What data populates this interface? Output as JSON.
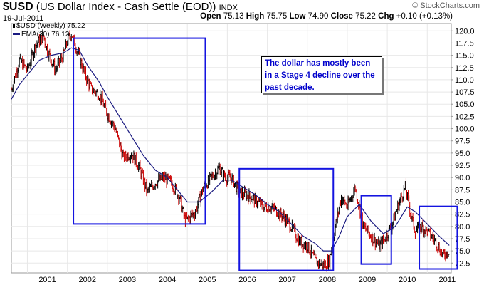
{
  "header": {
    "symbol": "$USD",
    "name": "(US Dollar Index - Cash Settle (EOD))",
    "exchange": "INDX",
    "date": "19-Jul-2011",
    "brand": "© StockCharts.com",
    "open_label": "Open",
    "open": "75.13",
    "high_label": "High",
    "high": "75.75",
    "low_label": "Low",
    "low": "74.90",
    "close_label": "Close",
    "close": "75.22",
    "chg_label": "Chg",
    "chg": "+0.10 (+0.13%)"
  },
  "legend": {
    "price": "$USD (Weekly) 75.22",
    "ema": "EMA(30) 76.12"
  },
  "annotation": {
    "text": "The dollar has mostly been in a Stage 4 decline over the past decade."
  },
  "colors": {
    "up": "#000000",
    "down": "#cc0000",
    "ema": "#1a1a80",
    "boxes": "#1414e0",
    "grid": "#e8e8e8",
    "annotation_text": "#0000cc"
  },
  "chart_data": {
    "type": "line",
    "title": "$USD (US Dollar Index - Cash Settle (EOD))",
    "x_axis": {
      "type": "time",
      "range": [
        2000.6,
        2011.6
      ],
      "tick_labels": [
        "2001",
        "2002",
        "2003",
        "2004",
        "2005",
        "2006",
        "2007",
        "2008",
        "2009",
        "2010",
        "2011"
      ]
    },
    "y_axis": {
      "position": "right",
      "range": [
        70.5,
        121.5
      ],
      "tick_labels": [
        "72.5",
        "75.0",
        "77.5",
        "80.0",
        "82.5",
        "85.0",
        "87.5",
        "90.0",
        "92.5",
        "95.0",
        "97.5",
        "100.0",
        "102.5",
        "105.0",
        "107.5",
        "110.0",
        "112.5",
        "115.0",
        "117.5",
        "120.0"
      ]
    },
    "grid": true,
    "series": [
      {
        "name": "$USD (Weekly)",
        "style": "hlc-bars",
        "points": [
          [
            2000.6,
            108
          ],
          [
            2000.8,
            114
          ],
          [
            2001.0,
            112
          ],
          [
            2001.2,
            117
          ],
          [
            2001.4,
            119
          ],
          [
            2001.5,
            116
          ],
          [
            2001.7,
            112
          ],
          [
            2001.9,
            115
          ],
          [
            2002.0,
            118
          ],
          [
            2002.1,
            119.5
          ],
          [
            2002.2,
            117
          ],
          [
            2002.4,
            112
          ],
          [
            2002.6,
            108
          ],
          [
            2002.8,
            107
          ],
          [
            2003.0,
            103
          ],
          [
            2003.2,
            100
          ],
          [
            2003.4,
            94
          ],
          [
            2003.6,
            95
          ],
          [
            2003.8,
            92
          ],
          [
            2004.0,
            87
          ],
          [
            2004.2,
            89
          ],
          [
            2004.4,
            90
          ],
          [
            2004.6,
            89
          ],
          [
            2004.8,
            86
          ],
          [
            2004.95,
            81
          ],
          [
            2005.2,
            83
          ],
          [
            2005.4,
            88
          ],
          [
            2005.6,
            90
          ],
          [
            2005.8,
            92
          ],
          [
            2005.95,
            90
          ],
          [
            2006.1,
            90
          ],
          [
            2006.3,
            87
          ],
          [
            2006.6,
            86
          ],
          [
            2006.9,
            84
          ],
          [
            2007.1,
            84
          ],
          [
            2007.4,
            82
          ],
          [
            2007.6,
            80
          ],
          [
            2007.8,
            77
          ],
          [
            2008.0,
            76
          ],
          [
            2008.2,
            73
          ],
          [
            2008.4,
            72
          ],
          [
            2008.55,
            73
          ],
          [
            2008.7,
            80
          ],
          [
            2008.85,
            86
          ],
          [
            2009.0,
            84
          ],
          [
            2009.2,
            88
          ],
          [
            2009.4,
            80
          ],
          [
            2009.6,
            78
          ],
          [
            2009.8,
            76
          ],
          [
            2009.9,
            77
          ],
          [
            2010.1,
            80
          ],
          [
            2010.3,
            85
          ],
          [
            2010.45,
            88
          ],
          [
            2010.6,
            82
          ],
          [
            2010.7,
            79
          ],
          [
            2010.85,
            80
          ],
          [
            2011.0,
            79
          ],
          [
            2011.2,
            77
          ],
          [
            2011.4,
            74
          ],
          [
            2011.55,
            75.22
          ]
        ]
      },
      {
        "name": "EMA(30)",
        "style": "line",
        "points": [
          [
            2000.6,
            106
          ],
          [
            2000.8,
            109
          ],
          [
            2001.0,
            111
          ],
          [
            2001.3,
            114
          ],
          [
            2001.6,
            115
          ],
          [
            2001.9,
            115.5
          ],
          [
            2002.1,
            116.5
          ],
          [
            2002.3,
            116
          ],
          [
            2002.5,
            113
          ],
          [
            2002.8,
            109.5
          ],
          [
            2003.0,
            106.5
          ],
          [
            2003.3,
            102.5
          ],
          [
            2003.6,
            98.5
          ],
          [
            2003.9,
            94.5
          ],
          [
            2004.2,
            91.5
          ],
          [
            2004.5,
            90
          ],
          [
            2004.8,
            87
          ],
          [
            2005.0,
            85
          ],
          [
            2005.3,
            85
          ],
          [
            2005.6,
            87
          ],
          [
            2005.9,
            89.5
          ],
          [
            2006.1,
            89.5
          ],
          [
            2006.4,
            88
          ],
          [
            2006.7,
            86.5
          ],
          [
            2007.0,
            84.5
          ],
          [
            2007.3,
            83
          ],
          [
            2007.6,
            80.5
          ],
          [
            2007.9,
            78
          ],
          [
            2008.2,
            76.5
          ],
          [
            2008.4,
            75
          ],
          [
            2008.6,
            75
          ],
          [
            2008.8,
            78
          ],
          [
            2009.0,
            82
          ],
          [
            2009.3,
            84.5
          ],
          [
            2009.6,
            81
          ],
          [
            2009.9,
            78.5
          ],
          [
            2010.2,
            80
          ],
          [
            2010.5,
            84
          ],
          [
            2010.7,
            83
          ],
          [
            2011.0,
            80.5
          ],
          [
            2011.3,
            78
          ],
          [
            2011.55,
            76.12
          ]
        ]
      }
    ],
    "highlight_boxes": [
      {
        "x": [
          2002.15,
          2005.45
        ],
        "y": [
          80.5,
          118.5
        ]
      },
      {
        "x": [
          2006.3,
          2008.65
        ],
        "y": [
          71.0,
          91.8
        ]
      },
      {
        "x": [
          2009.35,
          2010.1
        ],
        "y": [
          72.3,
          86.3
        ]
      },
      {
        "x": [
          2010.8,
          2011.75
        ],
        "y": [
          71.3,
          84.1
        ]
      }
    ]
  }
}
